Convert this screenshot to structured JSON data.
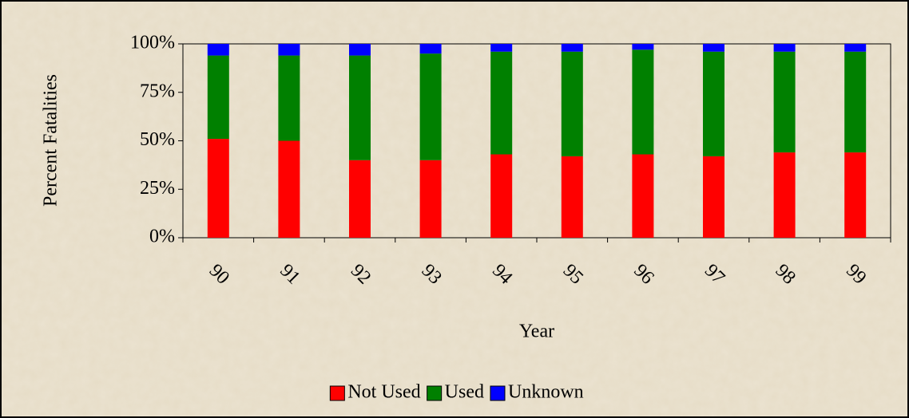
{
  "chart_data": {
    "type": "stacked-bar",
    "categories": [
      "90",
      "91",
      "92",
      "93",
      "94",
      "95",
      "96",
      "97",
      "98",
      "99"
    ],
    "series": [
      {
        "name": "Not Used",
        "color": "#ff0000",
        "values": [
          51,
          50,
          40,
          40,
          43,
          42,
          43,
          42,
          44,
          44
        ]
      },
      {
        "name": "Used",
        "color": "#008000",
        "values": [
          43,
          44,
          54,
          55,
          53,
          54,
          54,
          54,
          52,
          52
        ]
      },
      {
        "name": "Unknown",
        "color": "#0000ff",
        "values": [
          6,
          6,
          6,
          5,
          4,
          4,
          3,
          4,
          4,
          4
        ]
      }
    ],
    "ylim": [
      0,
      100
    ],
    "yticks": [
      {
        "value": 0,
        "label": "0%"
      },
      {
        "value": 25,
        "label": "25%"
      },
      {
        "value": 50,
        "label": "50%"
      },
      {
        "value": 75,
        "label": "75%"
      },
      {
        "value": 100,
        "label": "100%"
      }
    ],
    "xlabel": "Year",
    "ylabel": "Percent Fatalities",
    "legend": "bottom"
  }
}
